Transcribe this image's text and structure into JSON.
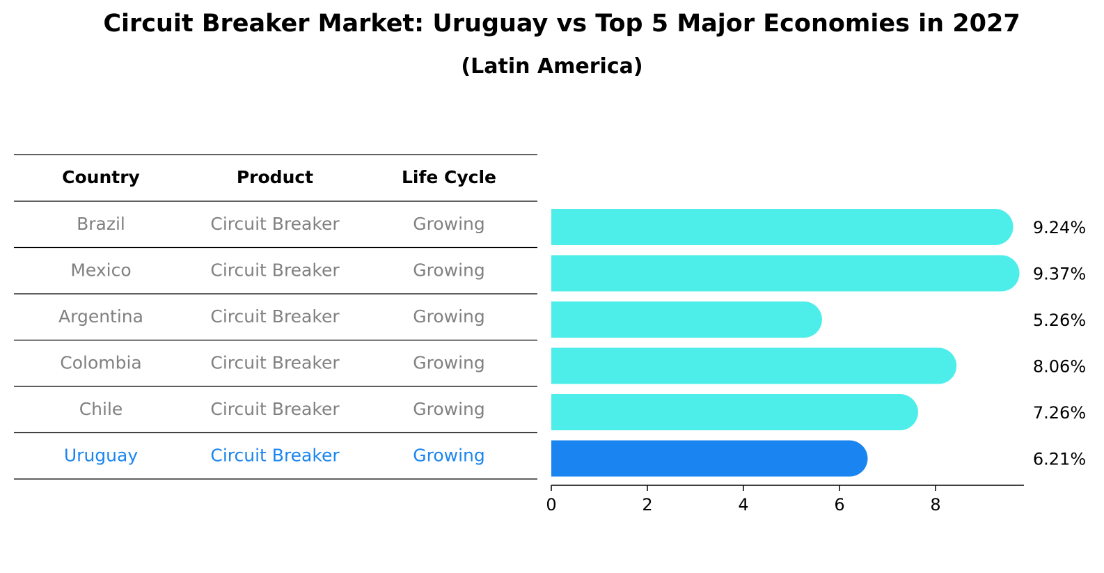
{
  "title": "Circuit Breaker Market: Uruguay vs Top 5 Major Economies in 2027",
  "subtitle": "(Latin America)",
  "table": {
    "headers": [
      "Country",
      "Product",
      "Life Cycle"
    ],
    "rows": [
      [
        "Brazil",
        "Circuit Breaker",
        "Growing"
      ],
      [
        "Mexico",
        "Circuit Breaker",
        "Growing"
      ],
      [
        "Argentina",
        "Circuit Breaker",
        "Growing"
      ],
      [
        "Colombia",
        "Circuit Breaker",
        "Growing"
      ],
      [
        "Chile",
        "Circuit Breaker",
        "Growing"
      ],
      [
        "Uruguay",
        "Circuit Breaker",
        "Growing"
      ]
    ],
    "highlight_row": 5
  },
  "colors": {
    "bar": "#4deeea",
    "highlight": "#1a85f0",
    "row_text": "#808080",
    "highlight_text": "#1a85f0"
  },
  "chart_data": {
    "type": "bar",
    "orientation": "horizontal",
    "categories": [
      "Brazil",
      "Mexico",
      "Argentina",
      "Colombia",
      "Chile",
      "Uruguay"
    ],
    "values": [
      9.24,
      9.37,
      5.26,
      8.06,
      7.26,
      6.21
    ],
    "value_labels": [
      "9.24%",
      "9.37%",
      "5.26%",
      "8.06%",
      "7.26%",
      "6.21%"
    ],
    "xticks": [
      0,
      2,
      4,
      6,
      8
    ],
    "xlim": [
      0,
      9.84
    ],
    "grid": false
  }
}
